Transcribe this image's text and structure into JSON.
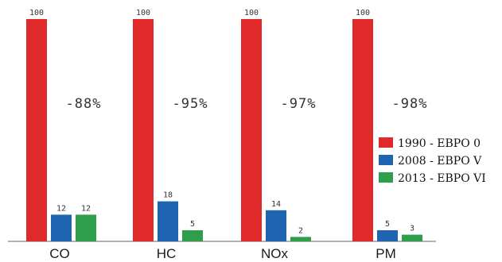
{
  "chart_data": {
    "type": "bar",
    "categories": [
      "CO",
      "HC",
      "NOx",
      "PM"
    ],
    "series": [
      {
        "name": "1990 - EBPO 0",
        "color": "#e0292b",
        "values": [
          100,
          100,
          100,
          100
        ]
      },
      {
        "name": "2008 - EBPO V",
        "color": "#1f64b0",
        "values": [
          12,
          18,
          14,
          5
        ]
      },
      {
        "name": "2013 - EBPO VI",
        "color": "#2e9e4a",
        "values": [
          12,
          5,
          2,
          3
        ]
      }
    ],
    "reductions": [
      "-88%",
      "-95%",
      "-97%",
      "-98%"
    ],
    "ylim": [
      0,
      100
    ],
    "grid": false,
    "legend_position": "right",
    "title": "",
    "xlabel": "",
    "ylabel": ""
  }
}
